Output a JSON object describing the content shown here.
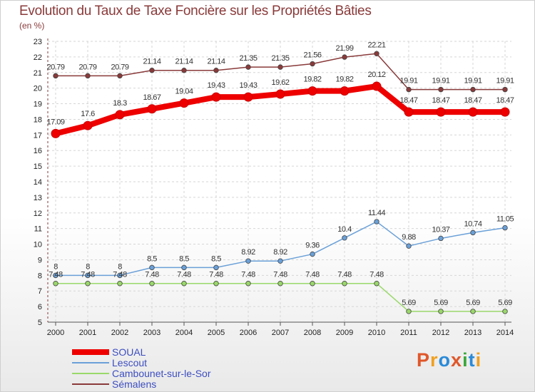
{
  "header": {
    "title": "Evolution du Taux de Taxe Foncière sur les Propriétés Bâties",
    "subtitle": "(en %)"
  },
  "brand": {
    "text": "Proxiti",
    "colors": [
      "#e0572a",
      "#f0a020",
      "#2a8ad8",
      "#e0572a",
      "#3aa83a",
      "#2a8ad8",
      "#f0a020"
    ]
  },
  "chart_data": {
    "type": "line",
    "title": "Evolution du Taux de Taxe Foncière sur les Propriétés Bâties",
    "ylabel": "(en %)",
    "categories": [
      "2000",
      "2001",
      "2002",
      "2003",
      "2004",
      "2005",
      "2006",
      "2007",
      "2008",
      "2009",
      "2010",
      "2011",
      "2012",
      "2013",
      "2014"
    ],
    "ylim": [
      5,
      23
    ],
    "yticks": [
      "5",
      "6",
      "7",
      "8",
      "9",
      "10",
      "11",
      "12",
      "13",
      "14",
      "15",
      "16",
      "17",
      "18",
      "19",
      "20",
      "21",
      "22",
      "23"
    ],
    "grid": true,
    "legend_position": "bottom-left",
    "series": [
      {
        "name": "SOUAL",
        "color": "#ee0000",
        "values": [
          17.09,
          17.6,
          18.3,
          18.67,
          19.04,
          19.43,
          19.43,
          19.62,
          19.82,
          19.82,
          20.12,
          18.47,
          18.47,
          18.47,
          18.47
        ],
        "labels": [
          "17.09",
          "17.6",
          "18.3",
          "18.67",
          "19.04",
          "19.43",
          "19.43",
          "19.62",
          "19.82",
          "19.82",
          "20.12",
          "18.47",
          "18.47",
          "18.47",
          "18.47"
        ]
      },
      {
        "name": "Lescout",
        "color": "#6aa0d8",
        "values": [
          8,
          8,
          8,
          8.5,
          8.5,
          8.5,
          8.92,
          8.92,
          9.36,
          10.4,
          11.44,
          9.88,
          10.37,
          10.74,
          11.05
        ],
        "labels": [
          "8",
          "8",
          "8",
          "8.5",
          "8.5",
          "8.5",
          "8.92",
          "8.92",
          "9.36",
          "10.4",
          "11.44",
          "9.88",
          "10.37",
          "10.74",
          "11.05"
        ]
      },
      {
        "name": "Cambounet-sur-le-Sor",
        "color": "#9ad86a",
        "values": [
          7.48,
          7.48,
          7.48,
          7.48,
          7.48,
          7.48,
          7.48,
          7.48,
          7.48,
          7.48,
          7.48,
          5.69,
          5.69,
          5.69,
          5.69
        ],
        "labels": [
          "7.48",
          "7.48",
          "7.48",
          "7.48",
          "7.48",
          "7.48",
          "7.48",
          "7.48",
          "7.48",
          "7.48",
          "7.48",
          "5.69",
          "5.69",
          "5.69",
          "5.69"
        ]
      },
      {
        "name": "Sémalens",
        "color": "#8a3a3a",
        "values": [
          20.79,
          20.79,
          20.79,
          21.14,
          21.14,
          21.14,
          21.35,
          21.35,
          21.56,
          21.99,
          22.21,
          19.91,
          19.91,
          19.91,
          19.91
        ],
        "labels": [
          "20.79",
          "20.79",
          "20.79",
          "21.14",
          "21.14",
          "21.14",
          "21.35",
          "21.35",
          "21.56",
          "21.99",
          "22.21",
          "19.91",
          "19.91",
          "19.91",
          "19.91"
        ]
      }
    ]
  }
}
